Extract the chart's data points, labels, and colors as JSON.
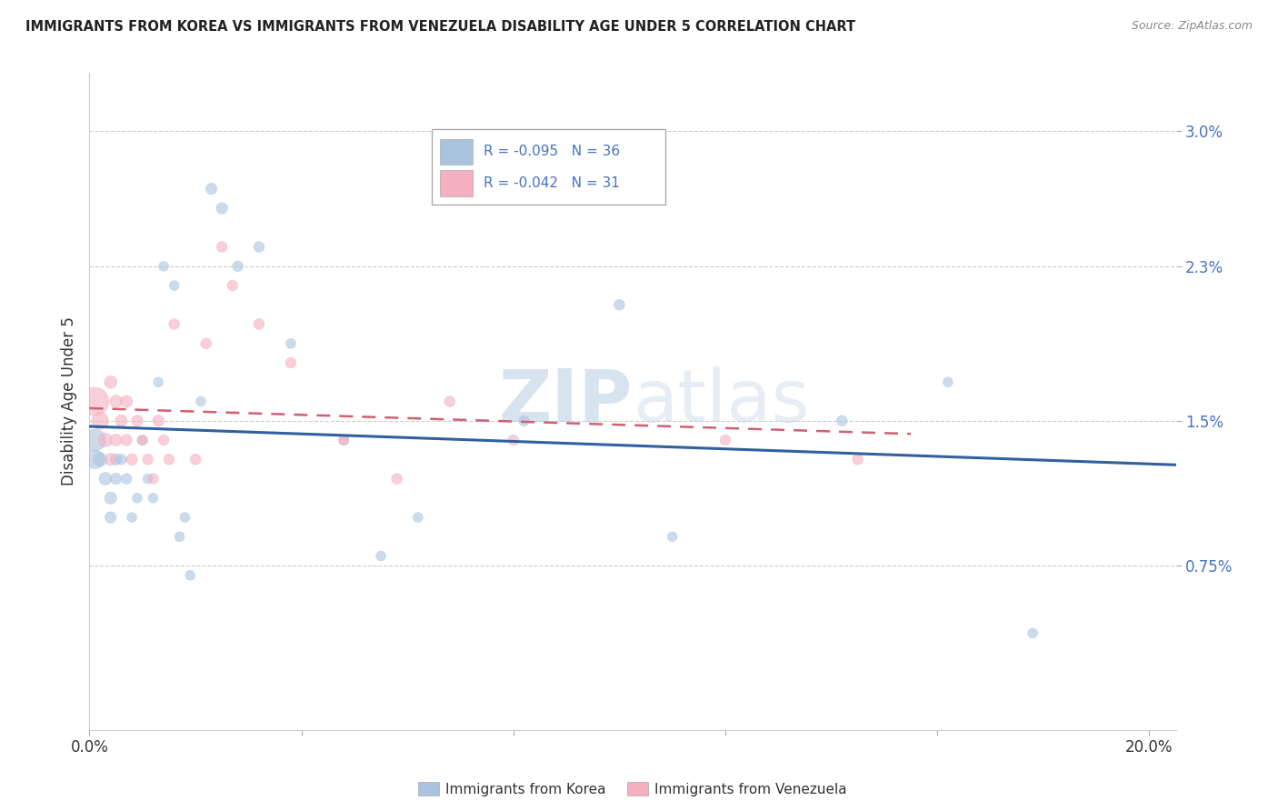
{
  "title": "IMMIGRANTS FROM KOREA VS IMMIGRANTS FROM VENEZUELA DISABILITY AGE UNDER 5 CORRELATION CHART",
  "source": "Source: ZipAtlas.com",
  "ylabel": "Disability Age Under 5",
  "xlim": [
    0.0,
    0.205
  ],
  "ylim": [
    -0.001,
    0.033
  ],
  "ytick_vals": [
    0.0075,
    0.015,
    0.023,
    0.03
  ],
  "ytick_labels": [
    "0.75%",
    "1.5%",
    "2.3%",
    "3.0%"
  ],
  "xtick_vals": [
    0.0,
    0.04,
    0.08,
    0.12,
    0.16,
    0.2
  ],
  "xtick_labels": [
    "0.0%",
    "",
    "",
    "",
    "",
    "20.0%"
  ],
  "korea_R": -0.095,
  "korea_N": 36,
  "venezuela_R": -0.042,
  "venezuela_N": 31,
  "korea_color": "#aac4e0",
  "venezuela_color": "#f4b0c0",
  "korea_line_color": "#3060a0",
  "venezuela_line_color": "#d06070",
  "background_color": "#ffffff",
  "grid_color": "#cccccc",
  "watermark_zip": "ZIP",
  "watermark_atlas": "atlas",
  "korea_x": [
    0.001,
    0.001,
    0.002,
    0.003,
    0.004,
    0.004,
    0.005,
    0.005,
    0.006,
    0.007,
    0.008,
    0.009,
    0.01,
    0.011,
    0.012,
    0.013,
    0.014,
    0.016,
    0.017,
    0.018,
    0.019,
    0.021,
    0.023,
    0.025,
    0.028,
    0.032,
    0.038,
    0.048,
    0.055,
    0.062,
    0.082,
    0.1,
    0.11,
    0.142,
    0.162,
    0.178
  ],
  "korea_y": [
    0.014,
    0.013,
    0.013,
    0.012,
    0.011,
    0.01,
    0.013,
    0.012,
    0.013,
    0.012,
    0.01,
    0.011,
    0.014,
    0.012,
    0.011,
    0.017,
    0.023,
    0.022,
    0.009,
    0.01,
    0.007,
    0.016,
    0.027,
    0.026,
    0.023,
    0.024,
    0.019,
    0.014,
    0.008,
    0.01,
    0.015,
    0.021,
    0.009,
    0.015,
    0.017,
    0.004
  ],
  "korea_size": [
    300,
    220,
    120,
    100,
    90,
    80,
    80,
    80,
    70,
    70,
    60,
    60,
    60,
    60,
    60,
    60,
    60,
    60,
    60,
    60,
    60,
    60,
    80,
    80,
    70,
    70,
    60,
    60,
    60,
    60,
    70,
    70,
    60,
    70,
    60,
    60
  ],
  "venezuela_x": [
    0.001,
    0.002,
    0.003,
    0.004,
    0.004,
    0.005,
    0.005,
    0.006,
    0.007,
    0.007,
    0.008,
    0.009,
    0.01,
    0.011,
    0.012,
    0.013,
    0.014,
    0.015,
    0.016,
    0.02,
    0.022,
    0.025,
    0.027,
    0.032,
    0.038,
    0.048,
    0.058,
    0.068,
    0.08,
    0.12,
    0.145
  ],
  "venezuela_y": [
    0.016,
    0.015,
    0.014,
    0.017,
    0.013,
    0.016,
    0.014,
    0.015,
    0.016,
    0.014,
    0.013,
    0.015,
    0.014,
    0.013,
    0.012,
    0.015,
    0.014,
    0.013,
    0.02,
    0.013,
    0.019,
    0.024,
    0.022,
    0.02,
    0.018,
    0.014,
    0.012,
    0.016,
    0.014,
    0.014,
    0.013
  ],
  "venezuela_size": [
    500,
    180,
    120,
    100,
    90,
    100,
    90,
    90,
    90,
    80,
    80,
    80,
    70,
    70,
    70,
    80,
    70,
    70,
    70,
    70,
    70,
    70,
    70,
    70,
    70,
    70,
    70,
    70,
    70,
    70,
    70
  ]
}
